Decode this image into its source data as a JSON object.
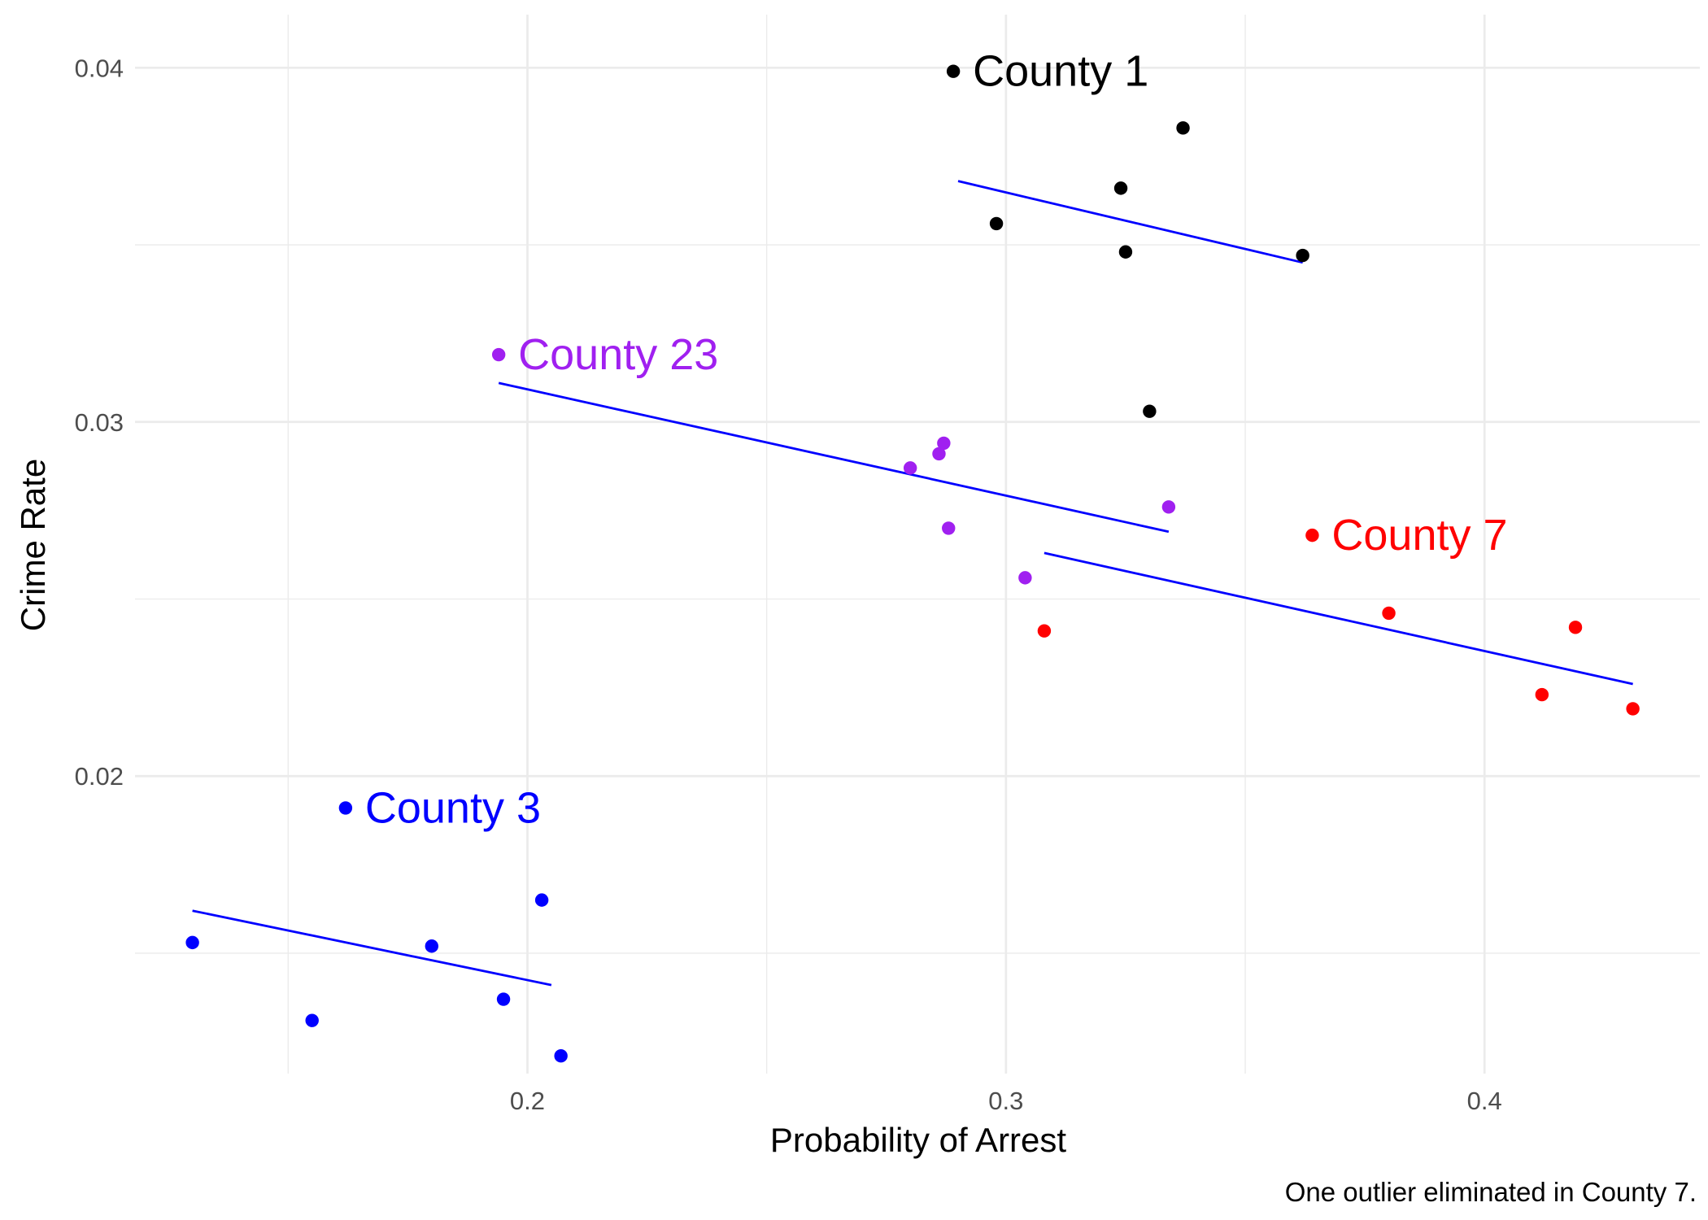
{
  "chart_data": {
    "type": "scatter",
    "title": "",
    "xlabel": "Probability of Arrest",
    "ylabel": "Crime Rate",
    "caption": "One outlier eliminated in County 7.",
    "xlim": [
      0.118,
      0.445
    ],
    "ylim": [
      0.0116,
      0.0415
    ],
    "x_ticks": [
      0.2,
      0.3,
      0.4
    ],
    "x_tick_labels": [
      "0.2",
      "0.3",
      "0.4"
    ],
    "y_ticks": [
      0.02,
      0.03,
      0.04
    ],
    "y_tick_labels": [
      "0.02",
      "0.03",
      "0.04"
    ],
    "grid": true,
    "legend": "none",
    "series": [
      {
        "name": "County 1",
        "color": "#000000",
        "label_at": [
          0.289,
          0.0399
        ],
        "points": [
          {
            "x": 0.289,
            "y": 0.0399
          },
          {
            "x": 0.337,
            "y": 0.0383
          },
          {
            "x": 0.324,
            "y": 0.0366
          },
          {
            "x": 0.298,
            "y": 0.0356
          },
          {
            "x": 0.325,
            "y": 0.0348
          },
          {
            "x": 0.362,
            "y": 0.0347
          },
          {
            "x": 0.33,
            "y": 0.0303
          }
        ],
        "fit": [
          [
            0.29,
            0.0368
          ],
          [
            0.362,
            0.0345
          ]
        ],
        "fit_color": "#0000ff"
      },
      {
        "name": "County 23",
        "color": "#a020f0",
        "label_at": [
          0.194,
          0.0319
        ],
        "points": [
          {
            "x": 0.194,
            "y": 0.0319
          },
          {
            "x": 0.287,
            "y": 0.0294
          },
          {
            "x": 0.286,
            "y": 0.0291
          },
          {
            "x": 0.28,
            "y": 0.0287
          },
          {
            "x": 0.334,
            "y": 0.0276
          },
          {
            "x": 0.288,
            "y": 0.027
          },
          {
            "x": 0.304,
            "y": 0.0256
          }
        ],
        "fit": [
          [
            0.194,
            0.0311
          ],
          [
            0.334,
            0.0269
          ]
        ],
        "fit_color": "#0000ff"
      },
      {
        "name": "County 7",
        "color": "#ff0000",
        "label_at": [
          0.364,
          0.0268
        ],
        "points": [
          {
            "x": 0.364,
            "y": 0.0268
          },
          {
            "x": 0.38,
            "y": 0.0246
          },
          {
            "x": 0.419,
            "y": 0.0242
          },
          {
            "x": 0.308,
            "y": 0.0241
          },
          {
            "x": 0.412,
            "y": 0.0223
          },
          {
            "x": 0.431,
            "y": 0.0219
          }
        ],
        "fit": [
          [
            0.308,
            0.0263
          ],
          [
            0.431,
            0.0226
          ]
        ],
        "fit_color": "#0000ff"
      },
      {
        "name": "County 3",
        "color": "#0000ff",
        "label_at": [
          0.162,
          0.0191
        ],
        "points": [
          {
            "x": 0.162,
            "y": 0.0191
          },
          {
            "x": 0.203,
            "y": 0.0165
          },
          {
            "x": 0.13,
            "y": 0.0153
          },
          {
            "x": 0.18,
            "y": 0.0152
          },
          {
            "x": 0.195,
            "y": 0.0137
          },
          {
            "x": 0.155,
            "y": 0.0131
          },
          {
            "x": 0.207,
            "y": 0.0121
          }
        ],
        "fit": [
          [
            0.13,
            0.0162
          ],
          [
            0.205,
            0.0141
          ]
        ],
        "fit_color": "#0000ff"
      }
    ]
  }
}
